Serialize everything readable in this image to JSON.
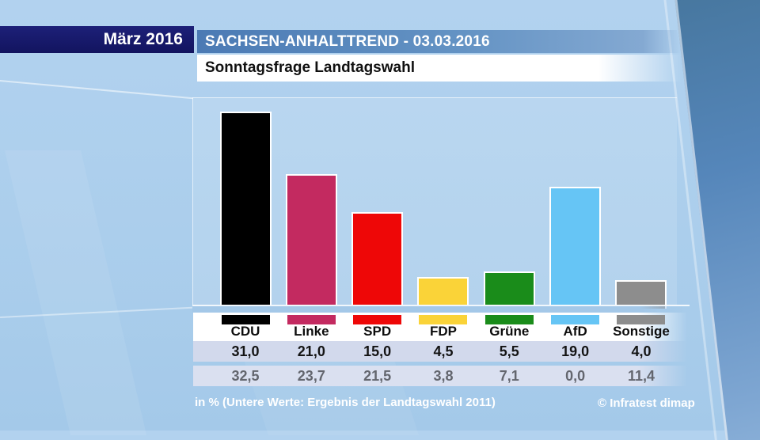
{
  "header": {
    "date_label": "März 2016",
    "title": "SACHSEN-ANHALTTREND - 03.03.2016",
    "subtitle": "Sonntagsfrage Landtagswahl"
  },
  "footer": {
    "note": "in % (Untere Werte: Ergebnis der Landtagswahl 2011)",
    "copyright": "© Infratest dimap"
  },
  "chart_data": {
    "type": "bar",
    "title": "Sonntagsfrage Landtagswahl Sachsen-Anhalt, SachsenAnhaltTrend 03.03.2016",
    "unit": "%",
    "categories": [
      "CDU",
      "Linke",
      "SPD",
      "FDP",
      "Grüne",
      "AfD",
      "Sonstige"
    ],
    "series": [
      {
        "name": "Sonntagsfrage März 2016",
        "values": [
          31.0,
          21.0,
          15.0,
          4.5,
          5.5,
          19.0,
          4.0
        ],
        "labels": [
          "31,0",
          "21,0",
          "15,0",
          "4,5",
          "5,5",
          "19,0",
          "4,0"
        ]
      },
      {
        "name": "Ergebnis der Landtagswahl 2011",
        "values": [
          32.5,
          23.7,
          21.5,
          3.8,
          7.1,
          0.0,
          11.4
        ],
        "labels": [
          "32,5",
          "23,7",
          "21,5",
          "3,8",
          "7,1",
          "0,0",
          "11,4"
        ]
      }
    ],
    "colors": {
      "CDU": "#000000",
      "Linke": "#c32a60",
      "SPD": "#ee0707",
      "FDP": "#fad338",
      "Grüne": "#1a8c1a",
      "AfD": "#66c5f5",
      "Sonstige": "#8d8d8d"
    },
    "ylim": [
      0,
      33
    ],
    "grid": false,
    "legend": false
  }
}
